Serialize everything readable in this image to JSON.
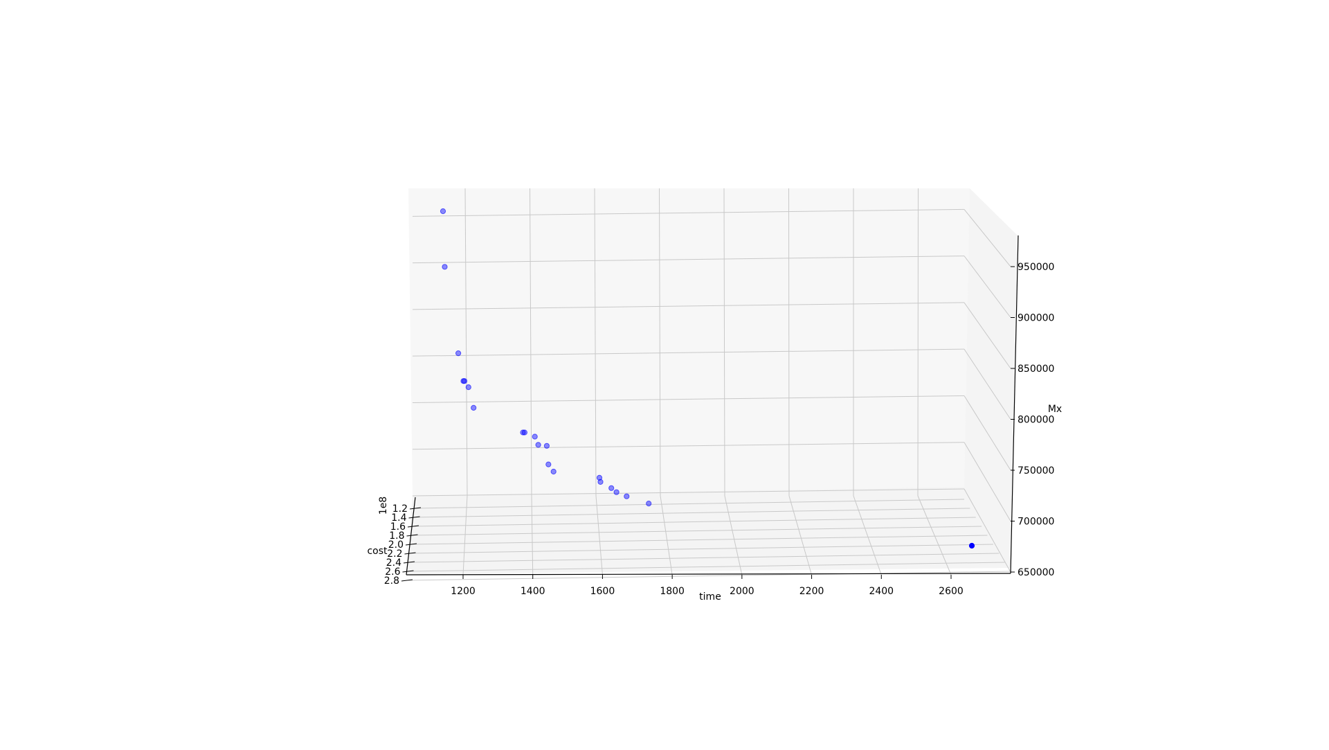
{
  "chart_data": {
    "type": "scatter",
    "projection": "3d",
    "grid": true,
    "xlabel": "time",
    "ylabel": "cost",
    "zlabel": "Mx",
    "y_offset_label": "1e8",
    "x_ticks": [
      "1200",
      "1400",
      "1600",
      "1800",
      "2000",
      "2200",
      "2400",
      "2600"
    ],
    "y_ticks": [
      "1.2",
      "1.4",
      "1.6",
      "1.8",
      "2.0",
      "2.2",
      "2.4",
      "2.6",
      "2.8"
    ],
    "z_ticks": [
      "650000",
      "700000",
      "750000",
      "800000",
      "850000",
      "900000",
      "950000"
    ],
    "point_color": "#0000ff",
    "points": [
      {
        "time": 1095,
        "Mx": 978000
      },
      {
        "time": 1100,
        "Mx": 924000
      },
      {
        "time": 1140,
        "Mx": 840000
      },
      {
        "time": 1155,
        "Mx": 813000
      },
      {
        "time": 1158,
        "Mx": 813000
      },
      {
        "time": 1170,
        "Mx": 807000
      },
      {
        "time": 1185,
        "Mx": 787000
      },
      {
        "time": 1330,
        "Mx": 763000
      },
      {
        "time": 1335,
        "Mx": 763000
      },
      {
        "time": 1365,
        "Mx": 759000
      },
      {
        "time": 1375,
        "Mx": 751000
      },
      {
        "time": 1400,
        "Mx": 750000
      },
      {
        "time": 1405,
        "Mx": 732000
      },
      {
        "time": 1420,
        "Mx": 725000
      },
      {
        "time": 1555,
        "Mx": 719000
      },
      {
        "time": 1558,
        "Mx": 715000
      },
      {
        "time": 1590,
        "Mx": 709000
      },
      {
        "time": 1605,
        "Mx": 705000
      },
      {
        "time": 1635,
        "Mx": 701000
      },
      {
        "time": 1700,
        "Mx": 694000
      },
      {
        "time": 2650,
        "Mx": 653000
      }
    ]
  }
}
